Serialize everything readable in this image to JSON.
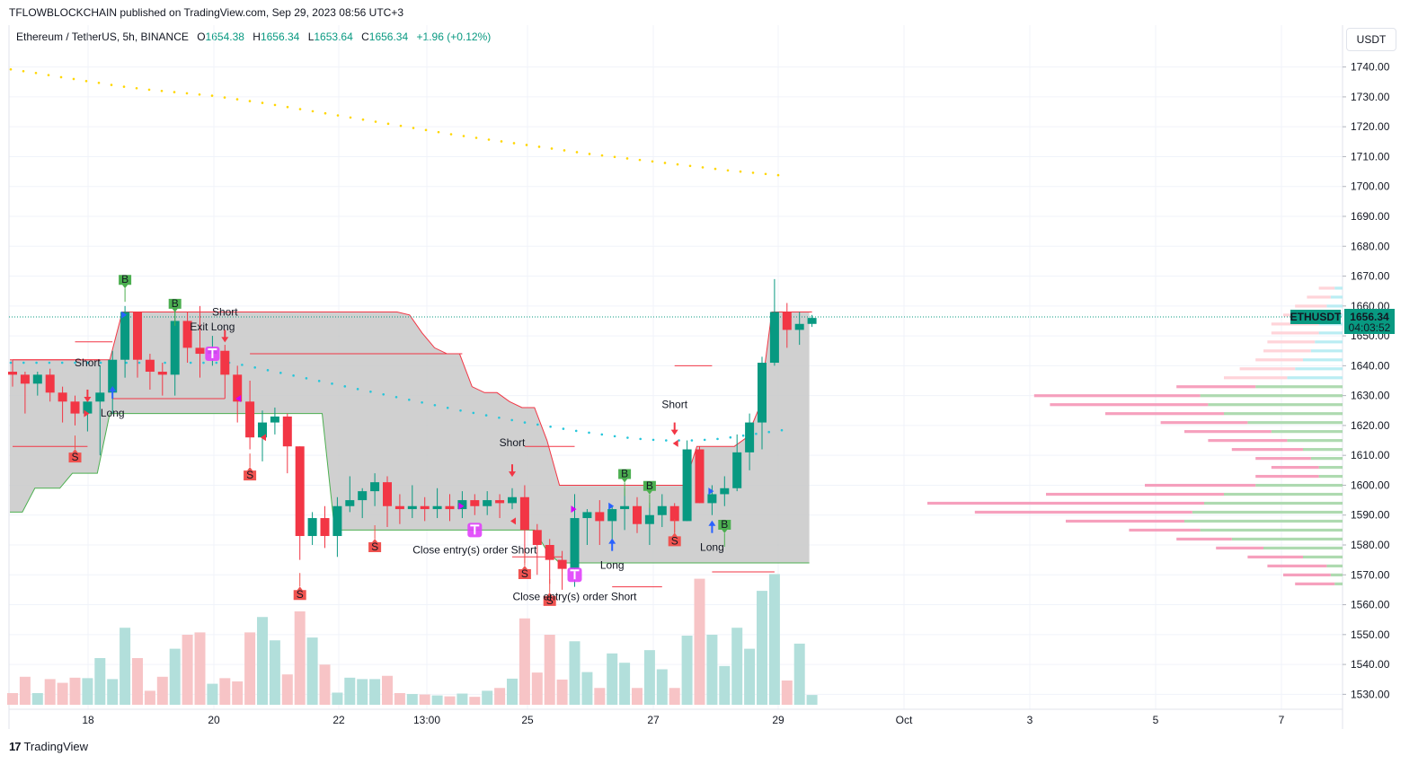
{
  "header": {
    "published_line": "TFLOWBLOCKCHAIN published on TradingView.com, Sep 29, 2023 08:56 UTC+3"
  },
  "legend": {
    "symbol_line": "Ethereum / TetherUS, 5h, BINANCE",
    "o_label": "O",
    "o_value": "1654.38",
    "h_label": "H",
    "h_value": "1656.34",
    "l_label": "L",
    "l_value": "1653.64",
    "c_label": "C",
    "c_value": "1656.34",
    "change": "+1.96 (+0.12%)"
  },
  "price_axis": {
    "unit": "USDT",
    "symbol_badge": "ETHUSDT",
    "last_price": "1656.34",
    "countdown": "04:03:52"
  },
  "footer": {
    "logo_mark": "17",
    "brand": "TradingView"
  },
  "chart_data": {
    "type": "candlestick",
    "ylim": [
      1525,
      1745
    ],
    "y_ticks": [
      1530,
      1540,
      1550,
      1560,
      1570,
      1580,
      1590,
      1600,
      1610,
      1620,
      1630,
      1640,
      1650,
      1660,
      1670,
      1680,
      1690,
      1700,
      1710,
      1720,
      1730,
      1740
    ],
    "x_ticks": [
      "18",
      "20",
      "22",
      "13:00",
      "25",
      "27",
      "29",
      "Oct",
      "3",
      "5",
      "7"
    ],
    "last_price": 1656.34,
    "candles": [
      [
        1638,
        1637,
        1642,
        1633
      ],
      [
        1637,
        1634,
        1638,
        1624
      ],
      [
        1634,
        1637,
        1638,
        1630
      ],
      [
        1637,
        1631,
        1639,
        1628
      ],
      [
        1631,
        1628,
        1633,
        1621
      ],
      [
        1628,
        1624,
        1630,
        1620
      ],
      [
        1624,
        1628,
        1632,
        1618
      ],
      [
        1628,
        1631,
        1640,
        1610
      ],
      [
        1631,
        1642,
        1645,
        1624
      ],
      [
        1642,
        1658,
        1660,
        1636
      ],
      [
        1658,
        1642,
        1658,
        1636
      ],
      [
        1642,
        1638,
        1644,
        1632
      ],
      [
        1638,
        1637,
        1641,
        1630
      ],
      [
        1637,
        1655,
        1662,
        1630
      ],
      [
        1655,
        1646,
        1658,
        1641
      ],
      [
        1646,
        1644,
        1660,
        1636
      ],
      [
        1644,
        1645,
        1650,
        1640
      ],
      [
        1645,
        1637,
        1647,
        1629
      ],
      [
        1637,
        1628,
        1640,
        1621
      ],
      [
        1628,
        1616,
        1635,
        1612
      ],
      [
        1616,
        1621,
        1625,
        1608
      ],
      [
        1621,
        1623,
        1626,
        1617
      ],
      [
        1623,
        1613,
        1624,
        1604
      ],
      [
        1613,
        1583,
        1613,
        1575
      ],
      [
        1583,
        1589,
        1591,
        1580
      ],
      [
        1589,
        1583,
        1593,
        1579
      ],
      [
        1583,
        1593,
        1596,
        1576
      ],
      [
        1593,
        1595,
        1603,
        1591
      ],
      [
        1595,
        1598,
        1599,
        1589
      ],
      [
        1598,
        1601,
        1604,
        1593
      ],
      [
        1601,
        1593,
        1603,
        1586
      ],
      [
        1593,
        1592,
        1597,
        1587
      ],
      [
        1592,
        1593,
        1600,
        1589
      ],
      [
        1593,
        1592,
        1596,
        1588
      ],
      [
        1592,
        1593,
        1599,
        1589
      ],
      [
        1593,
        1592,
        1597,
        1588
      ],
      [
        1592,
        1595,
        1598,
        1589
      ],
      [
        1595,
        1593,
        1597,
        1590
      ],
      [
        1593,
        1595,
        1598,
        1590
      ],
      [
        1595,
        1594,
        1597,
        1589
      ],
      [
        1594,
        1596,
        1599,
        1592
      ],
      [
        1596,
        1585,
        1600,
        1574
      ],
      [
        1585,
        1580,
        1587,
        1570
      ],
      [
        1580,
        1575,
        1582,
        1567
      ],
      [
        1575,
        1572,
        1578,
        1565
      ],
      [
        1572,
        1589,
        1597,
        1566
      ],
      [
        1589,
        1591,
        1592,
        1580
      ],
      [
        1591,
        1588,
        1595,
        1580
      ],
      [
        1588,
        1592,
        1593,
        1582
      ],
      [
        1592,
        1593,
        1599,
        1585
      ],
      [
        1593,
        1587,
        1596,
        1584
      ],
      [
        1587,
        1590,
        1594,
        1580
      ],
      [
        1590,
        1593,
        1597,
        1586
      ],
      [
        1593,
        1588,
        1594,
        1584
      ],
      [
        1588,
        1612,
        1615,
        1588
      ],
      [
        1612,
        1594,
        1613,
        1594
      ],
      [
        1594,
        1597,
        1600,
        1590
      ],
      [
        1597,
        1599,
        1603,
        1593
      ],
      [
        1599,
        1611,
        1617,
        1598
      ],
      [
        1611,
        1621,
        1624,
        1605
      ],
      [
        1621,
        1641,
        1643,
        1612
      ],
      [
        1641,
        1658,
        1669,
        1640
      ],
      [
        1658,
        1652,
        1661,
        1646
      ],
      [
        1652,
        1654,
        1658,
        1647
      ],
      [
        1654,
        1656,
        1657,
        1653
      ]
    ],
    "volumes": [
      0.25,
      0.6,
      0.25,
      0.55,
      0.47,
      0.58,
      0.57,
      1.0,
      0.55,
      1.65,
      1.0,
      0.3,
      0.6,
      1.2,
      1.5,
      1.55,
      0.45,
      0.57,
      0.5,
      1.55,
      1.88,
      1.38,
      0.65,
      2.0,
      1.44,
      0.86,
      0.26,
      0.58,
      0.55,
      0.55,
      0.62,
      0.25,
      0.23,
      0.22,
      0.2,
      0.18,
      0.24,
      0.17,
      0.3,
      0.36,
      0.56,
      1.85,
      0.69,
      1.5,
      0.54,
      1.36,
      0.7,
      0.36,
      1.1,
      0.9,
      0.36,
      1.17,
      0.76,
      0.36,
      1.48,
      2.7,
      1.5,
      0.83,
      1.65,
      1.2,
      2.44,
      2.8,
      0.52,
      1.31,
      0.21
    ],
    "cloud": {
      "top": [
        1642,
        1642,
        1642,
        1642,
        1642,
        1642,
        1642,
        1642,
        1642,
        1658,
        1658,
        1658,
        1658,
        1658,
        1658,
        1658,
        1658,
        1658,
        1658,
        1658,
        1658,
        1658,
        1658,
        1658,
        1658,
        1658,
        1658,
        1658,
        1658,
        1658,
        1658,
        1658,
        1657,
        1651,
        1646,
        1644,
        1644,
        1633,
        1631,
        1631,
        1628,
        1626,
        1626,
        1615,
        1600,
        1600,
        1600,
        1600,
        1600,
        1600,
        1600,
        1600,
        1600,
        1600,
        1600,
        1613,
        1613,
        1613,
        1613,
        1616,
        1626,
        1658,
        1658,
        1658,
        1658
      ],
      "bottom": [
        1591,
        1591,
        1599,
        1599,
        1599,
        1604,
        1604,
        1604,
        1624,
        1624,
        1624,
        1624,
        1624,
        1624,
        1624,
        1624,
        1624,
        1624,
        1624,
        1624,
        1624,
        1624,
        1624,
        1624,
        1624,
        1624,
        1585,
        1585,
        1585,
        1585,
        1585,
        1585,
        1585,
        1585,
        1585,
        1585,
        1585,
        1585,
        1585,
        1585,
        1585,
        1585,
        1585,
        1578,
        1574,
        1574,
        1574,
        1574,
        1574,
        1574,
        1574,
        1574,
        1574,
        1574,
        1574,
        1574,
        1574,
        1574,
        1574,
        1574,
        1574,
        1574,
        1574,
        1574,
        1574
      ]
    },
    "ma_dots_upper": [
      1739.2,
      1738.6,
      1738,
      1737.3,
      1736.6,
      1736,
      1735.3,
      1734.7,
      1734,
      1733.4,
      1732.9,
      1732.4,
      1732,
      1731.6,
      1731.2,
      1730.8,
      1730.4,
      1729.8,
      1729.2,
      1728.6,
      1728,
      1727.3,
      1726.6,
      1725.9,
      1725.2,
      1724.5,
      1723.8,
      1723.1,
      1722.4,
      1721.7,
      1721,
      1720.3,
      1719.6,
      1718.9,
      1718.2,
      1717.5,
      1716.9,
      1716.3,
      1715.7,
      1715.1,
      1714.5,
      1713.9,
      1713.3,
      1712.7,
      1712.1,
      1711.5,
      1710.9,
      1710.4,
      1709.9,
      1709.4,
      1708.9,
      1708.4,
      1707.9,
      1707.4,
      1706.9,
      1706.4,
      1705.9,
      1705.4,
      1705,
      1704.6,
      1704.2,
      1703.8
    ],
    "ma_dots_lower": [
      1641,
      1641,
      1641,
      1641,
      1641,
      1641,
      1641,
      1641,
      1641,
      1641,
      1641,
      1641,
      1641,
      1641,
      1641,
      1641,
      1641,
      1641,
      1640.3,
      1639.4,
      1638.5,
      1637.6,
      1636.7,
      1635.8,
      1634.9,
      1634,
      1633.1,
      1632.2,
      1631.3,
      1630.4,
      1629.5,
      1628.6,
      1627.7,
      1626.8,
      1625.9,
      1625,
      1624.2,
      1623.4,
      1622.6,
      1621.8,
      1621,
      1620.3,
      1619.6,
      1618.9,
      1618.2,
      1617.6,
      1617,
      1616.4,
      1615.9,
      1615.5,
      1615.2,
      1615,
      1615,
      1615,
      1615.2,
      1615.5,
      1616,
      1616.6,
      1617.2,
      1617.8,
      1618.4
    ],
    "levels": [
      {
        "price": 1642,
        "from": 0,
        "to": 7
      },
      {
        "price": 1613,
        "from": 0,
        "to": 6
      },
      {
        "price": 1629,
        "from": 8,
        "to": 17
      },
      {
        "price": 1644,
        "from": 19,
        "to": 36
      },
      {
        "price": 1613,
        "from": 41,
        "to": 45
      },
      {
        "price": 1566,
        "from": 48,
        "to": 52
      },
      {
        "price": 1640,
        "from": 53,
        "to": 56
      },
      {
        "price": 1571,
        "from": 56,
        "to": 61
      },
      {
        "price": 1658,
        "from": 61,
        "to": 64
      },
      {
        "price": 1648,
        "from": 5,
        "to": 8
      },
      {
        "price": 1576,
        "from": 40,
        "to": 44
      }
    ],
    "volume_profile": [
      {
        "price": 1567,
        "up": 0.02,
        "down": 0.1
      },
      {
        "price": 1570,
        "up": 0.03,
        "down": 0.12
      },
      {
        "price": 1573,
        "up": 0.04,
        "down": 0.15
      },
      {
        "price": 1576,
        "up": 0.1,
        "down": 0.14
      },
      {
        "price": 1579,
        "up": 0.2,
        "down": 0.12
      },
      {
        "price": 1582,
        "up": 0.28,
        "down": 0.14
      },
      {
        "price": 1585,
        "up": 0.36,
        "down": 0.18
      },
      {
        "price": 1588,
        "up": 0.4,
        "down": 0.3
      },
      {
        "price": 1591,
        "up": 0.38,
        "down": 0.55
      },
      {
        "price": 1594,
        "up": 0.35,
        "down": 0.7
      },
      {
        "price": 1597,
        "up": 0.3,
        "down": 0.45
      },
      {
        "price": 1600,
        "up": 0.22,
        "down": 0.28
      },
      {
        "price": 1603,
        "up": 0.06,
        "down": 0.16
      },
      {
        "price": 1606,
        "up": 0.06,
        "down": 0.12
      },
      {
        "price": 1609,
        "up": 0.08,
        "down": 0.14
      },
      {
        "price": 1612,
        "up": 0.1,
        "down": 0.18
      },
      {
        "price": 1615,
        "up": 0.14,
        "down": 0.2
      },
      {
        "price": 1618,
        "up": 0.18,
        "down": 0.22
      },
      {
        "price": 1621,
        "up": 0.24,
        "down": 0.22
      },
      {
        "price": 1624,
        "up": 0.3,
        "down": 0.3
      },
      {
        "price": 1627,
        "up": 0.34,
        "down": 0.4
      },
      {
        "price": 1630,
        "up": 0.36,
        "down": 0.42
      },
      {
        "price": 1633,
        "up": 0.22,
        "down": 0.2
      },
      {
        "price": 1636,
        "up": 0.14,
        "down": 0.16
      },
      {
        "price": 1639,
        "up": 0.12,
        "down": 0.14
      },
      {
        "price": 1642,
        "up": 0.1,
        "down": 0.12
      },
      {
        "price": 1645,
        "up": 0.08,
        "down": 0.12
      },
      {
        "price": 1648,
        "up": 0.07,
        "down": 0.12
      },
      {
        "price": 1651,
        "up": 0.06,
        "down": 0.12
      },
      {
        "price": 1654,
        "up": 0.06,
        "down": 0.12
      },
      {
        "price": 1657,
        "up": 0.05,
        "down": 0.1
      },
      {
        "price": 1660,
        "up": 0.04,
        "down": 0.08
      },
      {
        "price": 1663,
        "up": 0.03,
        "down": 0.06
      },
      {
        "price": 1666,
        "up": 0.02,
        "down": 0.04
      }
    ],
    "signals": [
      {
        "i": 5,
        "kind": "S",
        "price": 1610
      },
      {
        "i": 9,
        "kind": "B",
        "price": 1668
      },
      {
        "i": 13,
        "kind": "B",
        "price": 1660
      },
      {
        "i": 19,
        "kind": "S",
        "price": 1604
      },
      {
        "i": 23,
        "kind": "S",
        "price": 1564
      },
      {
        "i": 29,
        "kind": "S",
        "price": 1580
      },
      {
        "i": 41,
        "kind": "S",
        "price": 1571
      },
      {
        "i": 43,
        "kind": "S",
        "price": 1562
      },
      {
        "i": 49,
        "kind": "B",
        "price": 1603
      },
      {
        "i": 51,
        "kind": "B",
        "price": 1599
      },
      {
        "i": 53,
        "kind": "S",
        "price": 1582
      },
      {
        "i": 57,
        "kind": "B",
        "price": 1586
      }
    ],
    "entries": [
      {
        "i": 6,
        "dir": "down",
        "price": 1632,
        "label": "Short",
        "label_offset": -26
      },
      {
        "i": 8,
        "dir": "up",
        "price": 1629,
        "label": "Long",
        "label_offset": 20
      },
      {
        "i": 17,
        "dir": "down",
        "price": 1652,
        "label": "Short",
        "label_offset": -16
      },
      {
        "i": 40,
        "dir": "down",
        "price": 1607,
        "label": "Short",
        "label_offset": -20
      },
      {
        "i": 48,
        "dir": "up",
        "price": 1578,
        "label": "Long",
        "label_offset": 20
      },
      {
        "i": 53,
        "dir": "down",
        "price": 1621,
        "label": "Short",
        "label_offset": -16
      },
      {
        "i": 56,
        "dir": "up",
        "price": 1584,
        "label": "Long",
        "label_offset": 20
      }
    ],
    "exits": [
      {
        "i": 16,
        "price": 1644,
        "label": "Exit Long",
        "label_offset": -26
      },
      {
        "i": 37,
        "price": 1585,
        "label": "Close entry(s) order Short",
        "label_offset": 26
      },
      {
        "i": 45,
        "price": 1570,
        "label": "Close entry(s) order Short",
        "label_offset": 28
      }
    ],
    "markers": [
      {
        "i": 6,
        "price": 1624,
        "dir": "right",
        "color": "#f23645"
      },
      {
        "i": 9,
        "price": 1657,
        "dir": "right",
        "color": "#2962ff"
      },
      {
        "i": 18,
        "price": 1629,
        "dir": "left",
        "color": "#d500f9"
      },
      {
        "i": 20,
        "price": 1616,
        "dir": "left",
        "color": "#f23645"
      },
      {
        "i": 36,
        "price": 1593,
        "dir": "right",
        "color": "#d500f9"
      },
      {
        "i": 40,
        "price": 1588,
        "dir": "left",
        "color": "#f23645"
      },
      {
        "i": 45,
        "price": 1592,
        "dir": "right",
        "color": "#d500f9"
      },
      {
        "i": 48,
        "price": 1593,
        "dir": "right",
        "color": "#2962ff"
      },
      {
        "i": 53,
        "price": 1614,
        "dir": "left",
        "color": "#f23645"
      },
      {
        "i": 56,
        "price": 1598,
        "dir": "right",
        "color": "#2962ff"
      }
    ]
  },
  "colors": {
    "up": "#089981",
    "down": "#f23645",
    "up_volume": "#b2dfdb",
    "down_volume": "#f7c4c6",
    "cloud": "#c8c8c8",
    "ma_upper": "#ffd600",
    "ma_lower": "#26c6da",
    "buy_signal": "#4caf50",
    "sell_signal": "#f05350",
    "exit": "#e040fb",
    "long_arrow": "#2962ff"
  }
}
